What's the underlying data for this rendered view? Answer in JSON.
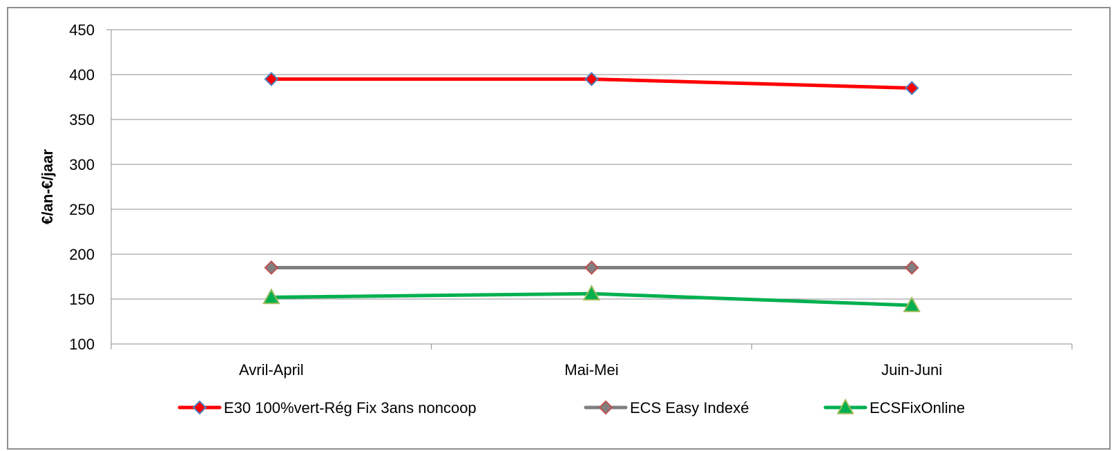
{
  "chart_data": {
    "type": "line",
    "title": "",
    "xlabel": "",
    "ylabel": "€/an-€/jaar",
    "ylim": [
      100,
      450
    ],
    "ytick_step": 50,
    "grid": true,
    "legend_position": "bottom",
    "categories": [
      "Avril-April",
      "Mai-Mei",
      "Juin-Juni"
    ],
    "series": [
      {
        "name": "E30 100%vert-Rég Fix 3ans noncoop",
        "values": [
          395,
          395,
          385
        ],
        "color": "#ff0000",
        "marker": "diamond",
        "marker_fill": "#ff0000",
        "marker_stroke": "#4f81bd"
      },
      {
        "name": "ECS Easy Indexé",
        "values": [
          185,
          185,
          185
        ],
        "color": "#808080",
        "marker": "diamond",
        "marker_fill": "#808080",
        "marker_stroke": "#c0504d"
      },
      {
        "name": "ECSFixOnline",
        "values": [
          152,
          156,
          143
        ],
        "color": "#00b050",
        "marker": "triangle",
        "marker_fill": "#00b050",
        "marker_stroke": "#9bbb59"
      }
    ]
  }
}
